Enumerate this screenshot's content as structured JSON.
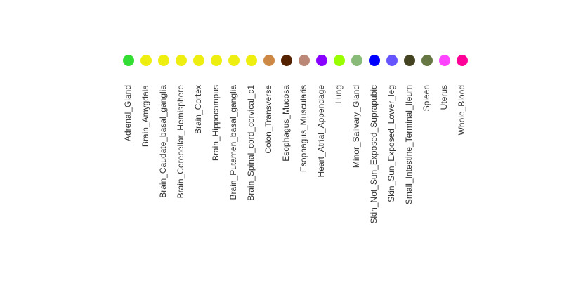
{
  "chart_data": {
    "type": "scatter",
    "title": "",
    "xlabel": "",
    "ylabel": "",
    "grid": false,
    "legend": "none",
    "categories": [
      "Adrenal_Gland",
      "Brain_Amygdala",
      "Brain_Caudate_basal_ganglia",
      "Brain_Cerebellar_Hemisphere",
      "Brain_Cortex",
      "Brain_Hippocampus",
      "Brain_Putamen_basal_ganglia",
      "Brain_Spinal_cord_cervical_c1",
      "Colon_Transverse",
      "Esophagus_Mucosa",
      "Esophagus_Muscularis",
      "Heart_Atrial_Appendage",
      "Lung",
      "Minor_Salivary_Gland",
      "Skin_Not_Sun_Exposed_Suprapubic",
      "Skin_Sun_Exposed_Lower_leg",
      "Small_Intestine_Terminal_Ileum",
      "Spleen",
      "Uterus",
      "Whole_Blood"
    ],
    "colors": [
      "#33dd33",
      "#eeee11",
      "#eeee11",
      "#eeee11",
      "#eeee11",
      "#eeee11",
      "#eeee11",
      "#eeee11",
      "#cc8844",
      "#552200",
      "#bb8877",
      "#8800ff",
      "#99ff00",
      "#88bb77",
      "#0000ff",
      "#6655ff",
      "#444422",
      "#667744",
      "#ff44ff",
      "#ff0099"
    ]
  }
}
